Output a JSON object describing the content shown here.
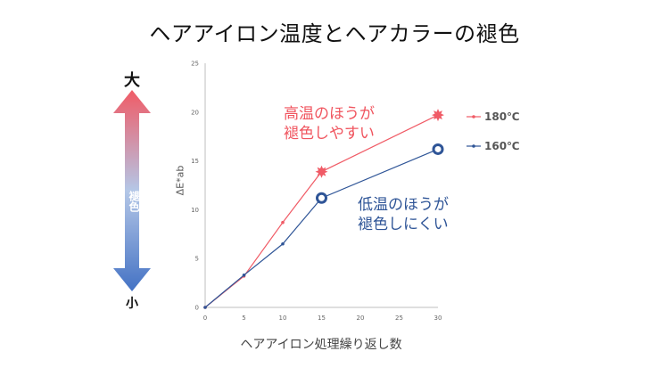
{
  "title": "ヘアアイロン温度とヘアカラーの褪色",
  "scale": {
    "top": "大",
    "middle": "褪色",
    "bottom": "小",
    "top_color": "#f05b66",
    "bottom_color": "#4472c4"
  },
  "annotations": {
    "high": [
      "高温のほうが",
      "褪色しやすい"
    ],
    "low": [
      "低温のほうが",
      "褪色しにくい"
    ],
    "high_color": "#f0555f",
    "low_color": "#2f5597"
  },
  "chart_data": {
    "type": "line",
    "title": "",
    "xlabel": "ヘアアイロン処理繰り返し数",
    "ylabel": "ΔE*ab",
    "x": [
      0,
      5,
      10,
      15,
      30
    ],
    "xticks": [
      0,
      5,
      10,
      15,
      20,
      25,
      30
    ],
    "yticks": [
      0,
      5,
      10,
      15,
      20,
      25
    ],
    "xlim": [
      0,
      30
    ],
    "ylim": [
      0,
      25
    ],
    "grid": false,
    "legend_position": "right",
    "series": [
      {
        "name": "180℃",
        "color": "#f05b66",
        "values": [
          0,
          3.2,
          8.7,
          13.9,
          19.7
        ]
      },
      {
        "name": "160℃",
        "color": "#2f5597",
        "values": [
          0,
          3.3,
          6.5,
          11.2,
          16.2
        ]
      }
    ]
  }
}
